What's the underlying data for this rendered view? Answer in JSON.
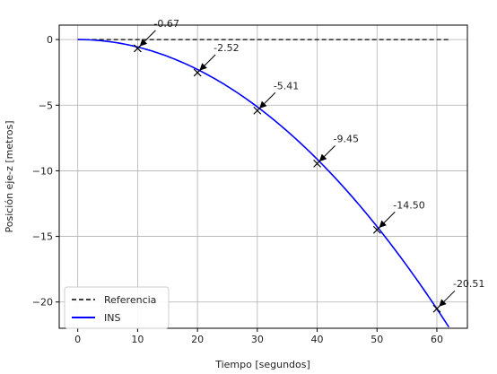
{
  "chart_data": {
    "type": "line",
    "xlabel": "Tiempo [segundos]",
    "ylabel": "Posición eje-z [metros]",
    "xlim": [
      -3.1,
      65.1
    ],
    "ylim": [
      -22.0,
      1.1
    ],
    "xticks": [
      0,
      10,
      20,
      30,
      40,
      50,
      60
    ],
    "yticks": [
      0,
      -5,
      -10,
      -15,
      -20
    ],
    "x_tick_labels": [
      "0",
      "10",
      "20",
      "30",
      "40",
      "50",
      "60"
    ],
    "y_tick_labels": [
      "0",
      "−5",
      "−10",
      "−15",
      "−20"
    ],
    "grid": true,
    "legend_position": "bottom-left",
    "series": [
      {
        "name": "Referencia",
        "style": "dashed",
        "color": "#000000",
        "x": [
          0,
          62
        ],
        "y": [
          0,
          0
        ]
      },
      {
        "name": "INS",
        "style": "solid",
        "color": "#0000ff",
        "x": [
          0,
          5,
          10,
          15,
          20,
          25,
          30,
          35,
          40,
          45,
          50,
          55,
          60,
          62
        ],
        "y": [
          0,
          -0.17,
          -0.67,
          -1.44,
          -2.52,
          -3.84,
          -5.41,
          -7.32,
          -9.45,
          -11.9,
          -14.5,
          -17.4,
          -20.51,
          -21.9
        ]
      }
    ],
    "annotations": [
      {
        "x": 10,
        "y": -0.67,
        "label": "-0.67"
      },
      {
        "x": 20,
        "y": -2.52,
        "label": "-2.52"
      },
      {
        "x": 30,
        "y": -5.41,
        "label": "-5.41"
      },
      {
        "x": 40,
        "y": -9.45,
        "label": "-9.45"
      },
      {
        "x": 50,
        "y": -14.5,
        "label": "-14.50"
      },
      {
        "x": 60,
        "y": -20.51,
        "label": "-20.51"
      }
    ]
  }
}
